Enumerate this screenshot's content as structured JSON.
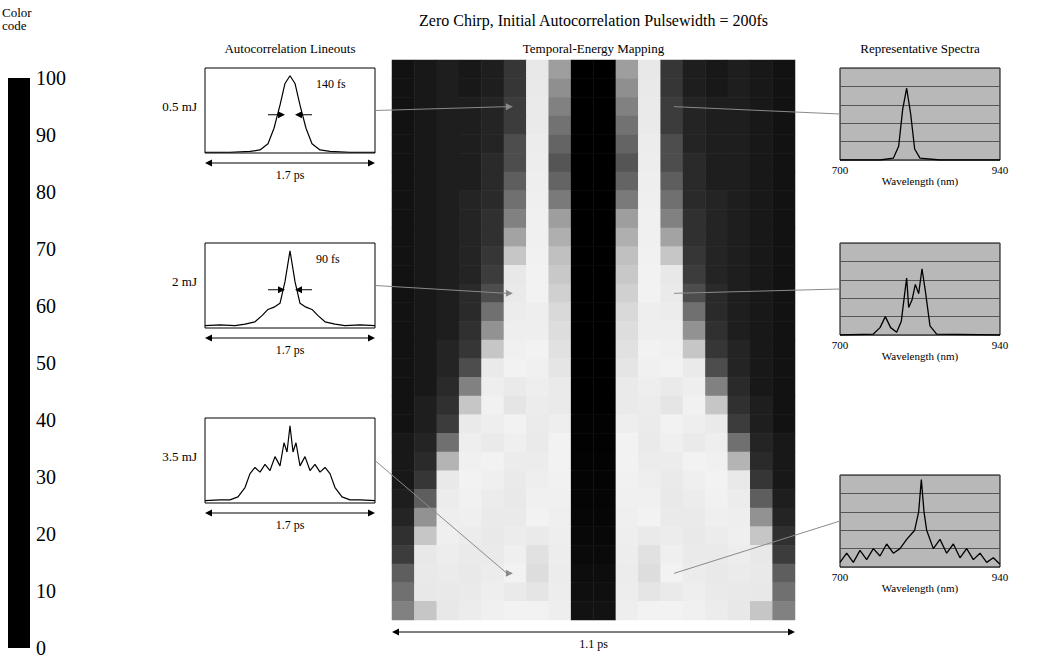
{
  "title": "Zero Chirp, Initial Autocorrelation Pulsewidth = 200fs",
  "chart_data": [
    {
      "type": "heatmap",
      "title": "Temporal-Energy Mapping",
      "span_label": "1.1 ps",
      "tick_labels": false,
      "x": [
        -0.51,
        -0.45,
        -0.39,
        -0.33,
        -0.27,
        -0.21,
        -0.15,
        -0.09,
        -0.03,
        0.03,
        0.09,
        0.15,
        0.21,
        0.27,
        0.33,
        0.39,
        0.45,
        0.51
      ],
      "y": [
        0.2,
        0.35,
        0.5,
        0.65,
        0.8,
        0.95,
        1.1,
        1.25,
        1.4,
        1.55,
        1.7,
        1.85,
        2.0,
        2.1,
        2.2,
        2.3,
        2.4,
        2.5,
        2.6,
        2.7,
        2.8,
        2.9,
        3.0,
        3.1,
        3.2,
        3.3,
        3.4,
        3.5,
        3.6,
        3.7
      ],
      "values": [
        [
          3,
          4,
          5,
          4,
          5,
          9,
          20,
          50,
          100,
          100,
          50,
          20,
          9,
          5,
          4,
          5,
          4,
          3
        ],
        [
          3,
          4,
          5,
          4,
          5,
          9,
          21,
          52,
          100,
          100,
          52,
          21,
          9,
          5,
          4,
          5,
          4,
          3
        ],
        [
          3,
          4,
          5,
          5,
          6,
          10,
          22,
          54,
          100,
          100,
          54,
          22,
          10,
          6,
          5,
          5,
          4,
          3
        ],
        [
          3,
          4,
          5,
          5,
          6,
          10,
          22,
          56,
          100,
          100,
          56,
          22,
          10,
          6,
          5,
          5,
          4,
          3
        ],
        [
          3,
          4,
          5,
          5,
          6,
          11,
          24,
          58,
          100,
          100,
          58,
          24,
          11,
          6,
          5,
          5,
          4,
          3
        ],
        [
          3,
          4,
          5,
          5,
          7,
          11,
          25,
          60,
          100,
          100,
          60,
          25,
          11,
          7,
          5,
          5,
          4,
          3
        ],
        [
          3,
          4,
          5,
          5,
          7,
          12,
          26,
          58,
          100,
          100,
          58,
          26,
          12,
          7,
          5,
          5,
          4,
          3
        ],
        [
          3,
          4,
          5,
          6,
          7,
          13,
          27,
          55,
          100,
          100,
          55,
          27,
          13,
          7,
          6,
          5,
          4,
          3
        ],
        [
          3,
          4,
          5,
          6,
          8,
          14,
          28,
          50,
          100,
          100,
          50,
          28,
          14,
          8,
          6,
          5,
          4,
          3
        ],
        [
          3,
          4,
          5,
          6,
          8,
          16,
          28,
          46,
          100,
          100,
          46,
          28,
          16,
          8,
          6,
          5,
          4,
          3
        ],
        [
          3,
          4,
          5,
          6,
          9,
          18,
          29,
          42,
          100,
          100,
          42,
          29,
          18,
          9,
          6,
          5,
          4,
          3
        ],
        [
          3,
          4,
          5,
          6,
          10,
          20,
          30,
          40,
          100,
          100,
          40,
          30,
          20,
          10,
          6,
          5,
          4,
          3
        ],
        [
          3,
          4,
          5,
          7,
          11,
          22,
          30,
          38,
          100,
          100,
          38,
          30,
          22,
          11,
          7,
          5,
          4,
          3
        ],
        [
          3,
          4,
          5,
          7,
          13,
          24,
          31,
          36,
          100,
          100,
          36,
          31,
          24,
          13,
          7,
          5,
          4,
          3
        ],
        [
          3,
          4,
          5,
          8,
          15,
          26,
          31,
          35,
          100,
          100,
          35,
          31,
          26,
          15,
          8,
          5,
          4,
          3
        ],
        [
          3,
          4,
          6,
          9,
          18,
          28,
          30,
          34,
          100,
          100,
          34,
          30,
          28,
          18,
          9,
          6,
          4,
          3
        ],
        [
          3,
          4,
          6,
          11,
          22,
          30,
          28,
          33,
          100,
          100,
          33,
          28,
          30,
          22,
          11,
          6,
          4,
          3
        ],
        [
          3,
          4,
          7,
          14,
          26,
          32,
          26,
          32,
          100,
          100,
          32,
          26,
          32,
          26,
          14,
          7,
          4,
          3
        ],
        [
          3,
          5,
          8,
          18,
          29,
          33,
          24,
          32,
          100,
          100,
          32,
          24,
          33,
          29,
          18,
          8,
          5,
          3
        ],
        [
          3,
          5,
          10,
          22,
          31,
          30,
          23,
          31,
          98,
          98,
          31,
          23,
          30,
          31,
          22,
          10,
          5,
          3
        ],
        [
          4,
          6,
          13,
          26,
          32,
          27,
          22,
          30,
          97,
          97,
          30,
          22,
          27,
          32,
          26,
          13,
          6,
          4
        ],
        [
          4,
          7,
          17,
          28,
          30,
          24,
          24,
          30,
          96,
          96,
          30,
          24,
          24,
          30,
          28,
          17,
          7,
          4
        ],
        [
          4,
          9,
          21,
          30,
          27,
          22,
          26,
          29,
          95,
          95,
          29,
          26,
          22,
          27,
          30,
          21,
          9,
          4
        ],
        [
          5,
          12,
          24,
          29,
          24,
          21,
          28,
          28,
          94,
          94,
          28,
          28,
          21,
          24,
          29,
          24,
          12,
          5
        ],
        [
          6,
          15,
          26,
          27,
          22,
          22,
          30,
          27,
          92,
          92,
          27,
          30,
          22,
          22,
          27,
          26,
          15,
          6
        ],
        [
          8,
          18,
          27,
          24,
          21,
          24,
          32,
          26,
          90,
          90,
          26,
          32,
          24,
          21,
          24,
          27,
          18,
          8
        ],
        [
          10,
          20,
          25,
          22,
          22,
          27,
          34,
          25,
          88,
          88,
          25,
          34,
          27,
          22,
          22,
          25,
          20,
          10
        ],
        [
          12,
          21,
          23,
          21,
          24,
          30,
          35,
          24,
          86,
          86,
          24,
          35,
          30,
          24,
          21,
          23,
          21,
          12
        ],
        [
          13,
          20,
          21,
          22,
          26,
          32,
          33,
          25,
          84,
          84,
          25,
          33,
          32,
          26,
          22,
          21,
          20,
          13
        ],
        [
          14,
          18,
          20,
          24,
          28,
          30,
          30,
          26,
          82,
          82,
          26,
          30,
          30,
          28,
          24,
          20,
          18,
          14
        ]
      ],
      "colorbar": {
        "title": "Color code",
        "range": [
          0,
          100
        ],
        "ticks": [
          0,
          10,
          20,
          30,
          40,
          50,
          60,
          70,
          80,
          90,
          100
        ]
      }
    },
    {
      "type": "line",
      "title": "Autocorrelation Lineouts",
      "span_label": "1.7 ps",
      "xlim": [
        -0.85,
        0.85
      ],
      "ylim": [
        0,
        110
      ],
      "tick_labels": false,
      "panels": [
        {
          "label": "0.5 mJ",
          "energy": 0.5,
          "width_label": "140 fs",
          "x": [
            -0.85,
            -0.6,
            -0.4,
            -0.3,
            -0.22,
            -0.16,
            -0.1,
            -0.05,
            0,
            0.05,
            0.1,
            0.16,
            0.22,
            0.3,
            0.4,
            0.6,
            0.85
          ],
          "values": [
            1,
            1,
            2,
            4,
            12,
            32,
            62,
            90,
            100,
            90,
            62,
            32,
            12,
            4,
            2,
            1,
            1
          ]
        },
        {
          "label": "2 mJ",
          "energy": 2.0,
          "width_label": "90 fs",
          "x": [
            -0.85,
            -0.7,
            -0.55,
            -0.45,
            -0.35,
            -0.28,
            -0.22,
            -0.16,
            -0.1,
            -0.05,
            0,
            0.05,
            0.1,
            0.16,
            0.22,
            0.28,
            0.35,
            0.45,
            0.55,
            0.7,
            0.85
          ],
          "values": [
            3,
            4,
            3,
            5,
            8,
            16,
            24,
            27,
            32,
            60,
            100,
            60,
            32,
            27,
            24,
            16,
            8,
            5,
            3,
            4,
            3
          ]
        },
        {
          "label": "3.5 mJ",
          "energy": 3.5,
          "x": [
            -0.85,
            -0.7,
            -0.6,
            -0.52,
            -0.45,
            -0.4,
            -0.35,
            -0.3,
            -0.25,
            -0.2,
            -0.15,
            -0.1,
            -0.06,
            -0.03,
            0,
            0.03,
            0.06,
            0.1,
            0.15,
            0.2,
            0.25,
            0.3,
            0.35,
            0.4,
            0.45,
            0.52,
            0.6,
            0.7,
            0.85
          ],
          "values": [
            3,
            4,
            4,
            8,
            20,
            38,
            46,
            40,
            50,
            42,
            60,
            48,
            78,
            66,
            100,
            66,
            78,
            48,
            60,
            42,
            50,
            40,
            46,
            38,
            20,
            8,
            4,
            4,
            3
          ]
        }
      ]
    },
    {
      "type": "line",
      "title": "Representative Spectra",
      "xlabel": "Wavelength (nm)",
      "xlim": [
        700,
        940
      ],
      "xticks": [
        700,
        940
      ],
      "ylim": [
        0,
        100
      ],
      "yticks": [
        0,
        20,
        40,
        60,
        80,
        100
      ],
      "grid": true,
      "tick_labels": "x",
      "panels": [
        {
          "energy": 0.5,
          "x": [
            700,
            760,
            780,
            788,
            794,
            800,
            806,
            812,
            820,
            850,
            940
          ],
          "values": [
            0,
            0,
            2,
            15,
            55,
            78,
            50,
            12,
            2,
            0,
            0
          ]
        },
        {
          "energy": 2.0,
          "x": [
            700,
            750,
            760,
            768,
            776,
            785,
            792,
            797,
            800,
            803,
            808,
            813,
            818,
            823,
            828,
            835,
            845,
            940
          ],
          "values": [
            0,
            1,
            8,
            20,
            8,
            3,
            15,
            45,
            62,
            30,
            38,
            55,
            45,
            72,
            48,
            10,
            1,
            0
          ]
        },
        {
          "energy": 3.5,
          "x": [
            700,
            710,
            720,
            730,
            740,
            750,
            760,
            770,
            780,
            790,
            800,
            812,
            818,
            822,
            826,
            830,
            840,
            850,
            860,
            870,
            880,
            890,
            900,
            910,
            920,
            930,
            940
          ],
          "values": [
            5,
            15,
            5,
            18,
            8,
            20,
            12,
            25,
            15,
            20,
            30,
            40,
            60,
            95,
            60,
            40,
            20,
            30,
            15,
            25,
            10,
            20,
            8,
            15,
            5,
            10,
            3
          ]
        }
      ]
    }
  ]
}
